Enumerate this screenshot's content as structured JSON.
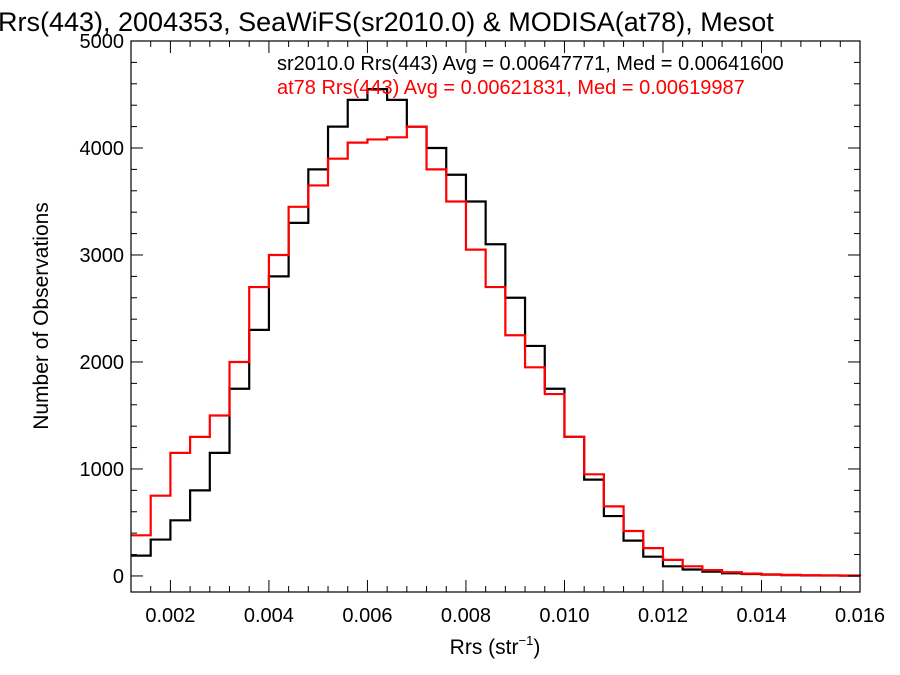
{
  "chart_data": {
    "type": "line",
    "step": true,
    "title": "Rrs(443), 2004353, SeaWiFS(sr2010.0) & MODISA(at78), Mesot",
    "xlabel": "Rrs (str",
    "xlabel_sup": "−1",
    "xlabel_tail": ")",
    "ylabel": "Number of Observations",
    "xlim": [
      0.0012,
      0.016
    ],
    "ylim": [
      -150,
      5000
    ],
    "xticks": [
      0.002,
      0.004,
      0.006,
      0.008,
      0.01,
      0.012,
      0.014,
      0.016
    ],
    "xtick_labels": [
      "0.002",
      "0.004",
      "0.006",
      "0.008",
      "0.010",
      "0.012",
      "0.014",
      "0.016"
    ],
    "yticks": [
      0,
      1000,
      2000,
      3000,
      4000,
      5000
    ],
    "ytick_labels": [
      "0",
      "1000",
      "2000",
      "3000",
      "4000",
      "5000"
    ],
    "grid": false,
    "legend_position": "top-right",
    "series": [
      {
        "legend": "sr2010.0 Rrs(443) Avg = 0.00647771, Med = 0.00641600",
        "color": "#000000",
        "x": [
          0.0012,
          0.0016,
          0.002,
          0.0024,
          0.0028,
          0.0032,
          0.0036,
          0.004,
          0.0044,
          0.0048,
          0.0052,
          0.0056,
          0.006,
          0.0064,
          0.0068,
          0.0072,
          0.0076,
          0.008,
          0.0084,
          0.0088,
          0.0092,
          0.0096,
          0.01,
          0.0104,
          0.0108,
          0.0112,
          0.0116,
          0.012,
          0.0124,
          0.0128,
          0.0132,
          0.0136,
          0.014,
          0.0144,
          0.0148,
          0.0152,
          0.0156,
          0.016
        ],
        "values": [
          190,
          340,
          520,
          800,
          1150,
          1750,
          2300,
          2800,
          3300,
          3800,
          4200,
          4450,
          4550,
          4450,
          4200,
          4000,
          3750,
          3500,
          3100,
          2600,
          2150,
          1750,
          1300,
          900,
          560,
          330,
          180,
          90,
          60,
          40,
          25,
          18,
          12,
          8,
          5,
          4,
          3,
          2
        ]
      },
      {
        "legend": "at78 Rrs(443) Avg = 0.00621831, Med = 0.00619987",
        "color": "#ff0000",
        "x": [
          0.0012,
          0.0016,
          0.002,
          0.0024,
          0.0028,
          0.0032,
          0.0036,
          0.004,
          0.0044,
          0.0048,
          0.0052,
          0.0056,
          0.006,
          0.0064,
          0.0068,
          0.0072,
          0.0076,
          0.008,
          0.0084,
          0.0088,
          0.0092,
          0.0096,
          0.01,
          0.0104,
          0.0108,
          0.0112,
          0.0116,
          0.012,
          0.0124,
          0.0128,
          0.0132,
          0.0136,
          0.014,
          0.0144,
          0.0148,
          0.0152,
          0.0156,
          0.016
        ],
        "values": [
          380,
          750,
          1150,
          1300,
          1500,
          2000,
          2700,
          3000,
          3450,
          3650,
          3900,
          4050,
          4080,
          4100,
          4200,
          3800,
          3500,
          3050,
          2700,
          2250,
          1950,
          1700,
          1300,
          950,
          650,
          420,
          260,
          150,
          90,
          55,
          35,
          22,
          15,
          10,
          7,
          5,
          4,
          3
        ]
      }
    ]
  }
}
